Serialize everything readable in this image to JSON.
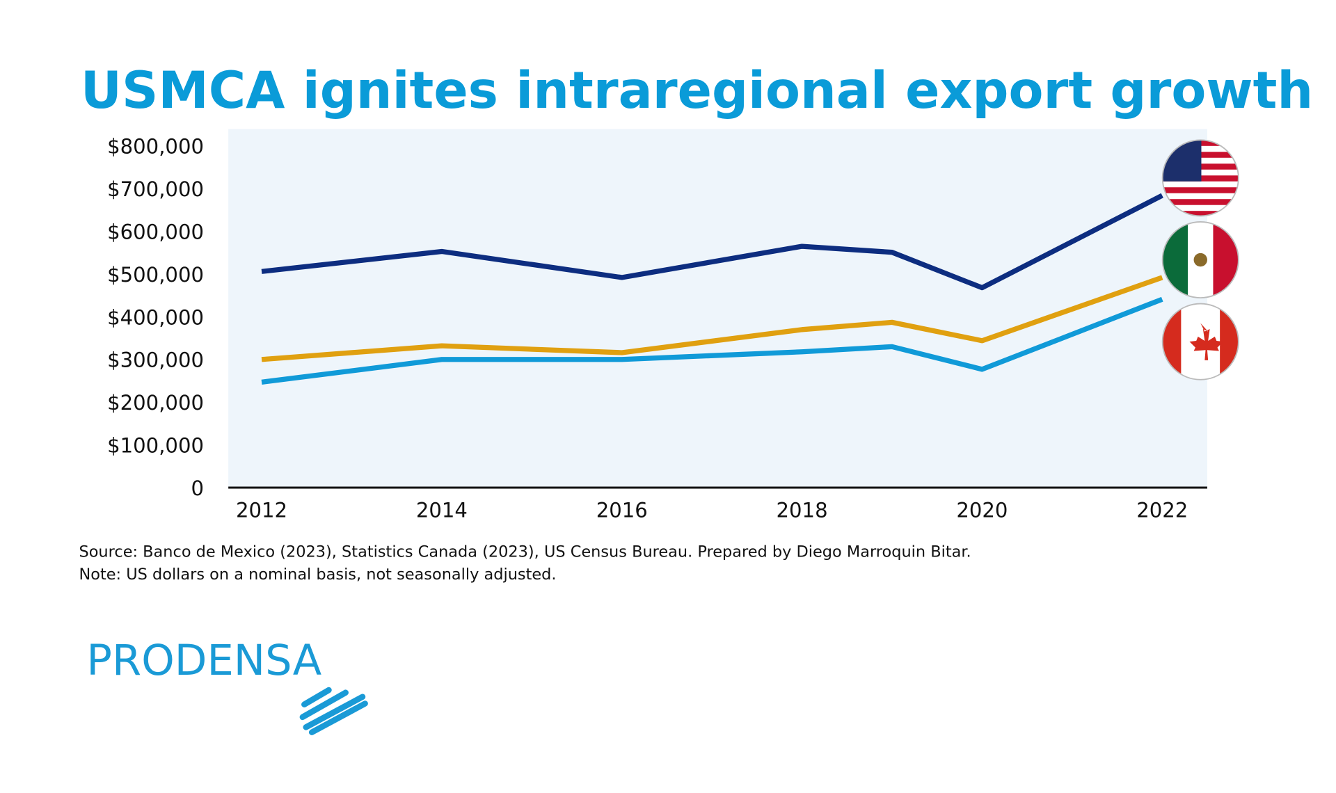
{
  "chart_data": {
    "type": "line",
    "title": "USMCA ignites intraregional export growth",
    "x": [
      2012,
      2014,
      2016,
      2018,
      2019,
      2020,
      2022
    ],
    "series": [
      {
        "color": "#0d2d80",
        "values": [
          506000,
          553000,
          492000,
          565000,
          551000,
          468000,
          684000
        ]
      },
      {
        "color": "#e0a010",
        "values": [
          300000,
          332000,
          316000,
          370000,
          387000,
          344000,
          492000
        ]
      },
      {
        "color": "#109ad8",
        "values": [
          247000,
          300000,
          300000,
          318000,
          330000,
          277000,
          441000
        ]
      }
    ],
    "xlim": [
      2011.63,
      2022.5
    ],
    "xticks": [
      2012,
      2014,
      2016,
      2018,
      2020,
      2022
    ],
    "ylim": [
      0,
      800000
    ],
    "yticks": [
      0,
      {
        "value": 100000,
        "label": "$100,000"
      },
      {
        "value": 200000,
        "label": "$200,000"
      },
      {
        "value": 300000,
        "label": "$300,000"
      },
      {
        "value": 400000,
        "label": "$400,000"
      },
      {
        "value": 500000,
        "label": "$500,000"
      },
      {
        "value": 600000,
        "label": "$600,000"
      },
      {
        "value": 700000,
        "label": "$700,000"
      },
      {
        "value": 800000,
        "label": "$800,000"
      }
    ],
    "source": "Source: Banco de Mexico (2023), Statistics Canada (2023), US Census Bureau. Prepared by Diego Marroquin Bitar.",
    "note": "Note: US dollars on a nominal basis, not seasonally adjusted.",
    "logo": "PRODENSA"
  }
}
